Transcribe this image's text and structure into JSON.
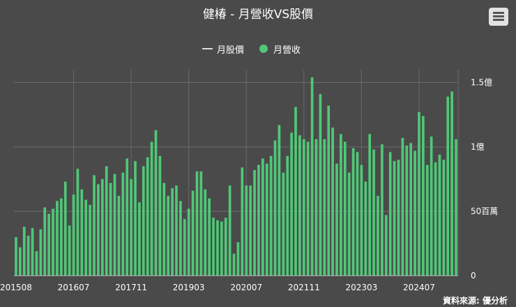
{
  "header": {
    "title": "健椿 - 月營收VS股價"
  },
  "legend": {
    "price_label": "月股價",
    "revenue_label": "月營收"
  },
  "credit": "資料來源: 優分析",
  "colors": {
    "bar": "#50c878",
    "background": "#4a4a4a",
    "grid": "#6a6a6a",
    "text": "#ffffff",
    "price_line": "#dddddd"
  },
  "chart_data": {
    "type": "bar",
    "title": "健椿 - 月營收VS股價",
    "xlabel": "",
    "ylabel": "",
    "ylim": [
      0,
      160000000
    ],
    "x_ticks": [
      "201508",
      "201607",
      "201711",
      "201903",
      "202007",
      "202111",
      "202303",
      "202407"
    ],
    "y_ticks": [
      {
        "value": 0,
        "label": "0"
      },
      {
        "value": 50000000,
        "label": "50百萬"
      },
      {
        "value": 100000000,
        "label": "1億"
      },
      {
        "value": 150000000,
        "label": "1.5億"
      }
    ],
    "series": [
      {
        "name": "月營收",
        "values": [
          30,
          22,
          38,
          31,
          37,
          19,
          36,
          53,
          48,
          52,
          58,
          60,
          73,
          39,
          63,
          83,
          67,
          59,
          55,
          78,
          71,
          75,
          85,
          72,
          79,
          62,
          80,
          91,
          75,
          89,
          57,
          85,
          92,
          104,
          113,
          93,
          72,
          62,
          68,
          70,
          58,
          44,
          52,
          66,
          81,
          81,
          67,
          60,
          45,
          43,
          42,
          45,
          70,
          17,
          26,
          84,
          70,
          70,
          82,
          86,
          91,
          87,
          93,
          105,
          117,
          80,
          93,
          111,
          131,
          109,
          106,
          104,
          154,
          106,
          141,
          106,
          132,
          115,
          87,
          110,
          104,
          80,
          99,
          96,
          86,
          73,
          110,
          98,
          62,
          102,
          47,
          96,
          89,
          90,
          107,
          101,
          103,
          97,
          127,
          124,
          86,
          108,
          88,
          94,
          90,
          139,
          143,
          106
        ]
      }
    ]
  }
}
